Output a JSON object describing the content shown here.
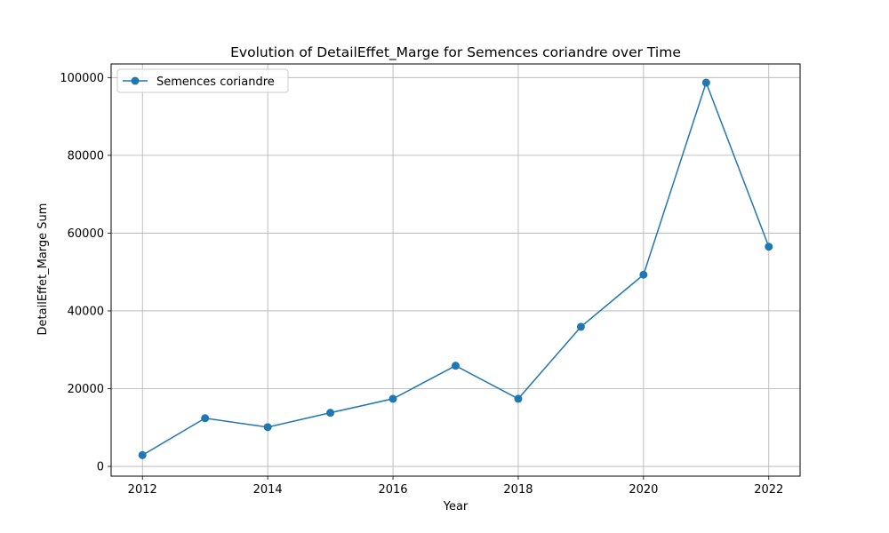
{
  "chart_data": {
    "type": "line",
    "title": "Evolution of DetailEffet_Marge for Semences coriandre over Time",
    "xlabel": "Year",
    "ylabel": "DetailEffet_Marge Sum",
    "xlim": [
      2011.5,
      2022.5
    ],
    "ylim": [
      -2500,
      103500
    ],
    "x_ticks": [
      "2012",
      "2014",
      "2016",
      "2018",
      "2020",
      "2022"
    ],
    "y_ticks": [
      "0",
      "20000",
      "40000",
      "60000",
      "80000",
      "100000"
    ],
    "grid": true,
    "legend_position": "top-left",
    "series": [
      {
        "name": "Semences coriandre",
        "color": "#1f77b4",
        "marker": "circle",
        "x": [
          2012,
          2013,
          2014,
          2015,
          2016,
          2017,
          2018,
          2019,
          2020,
          2021,
          2022
        ],
        "y": [
          2900,
          12400,
          10100,
          13800,
          17400,
          25900,
          17400,
          35900,
          49300,
          98700,
          56500
        ]
      }
    ]
  }
}
